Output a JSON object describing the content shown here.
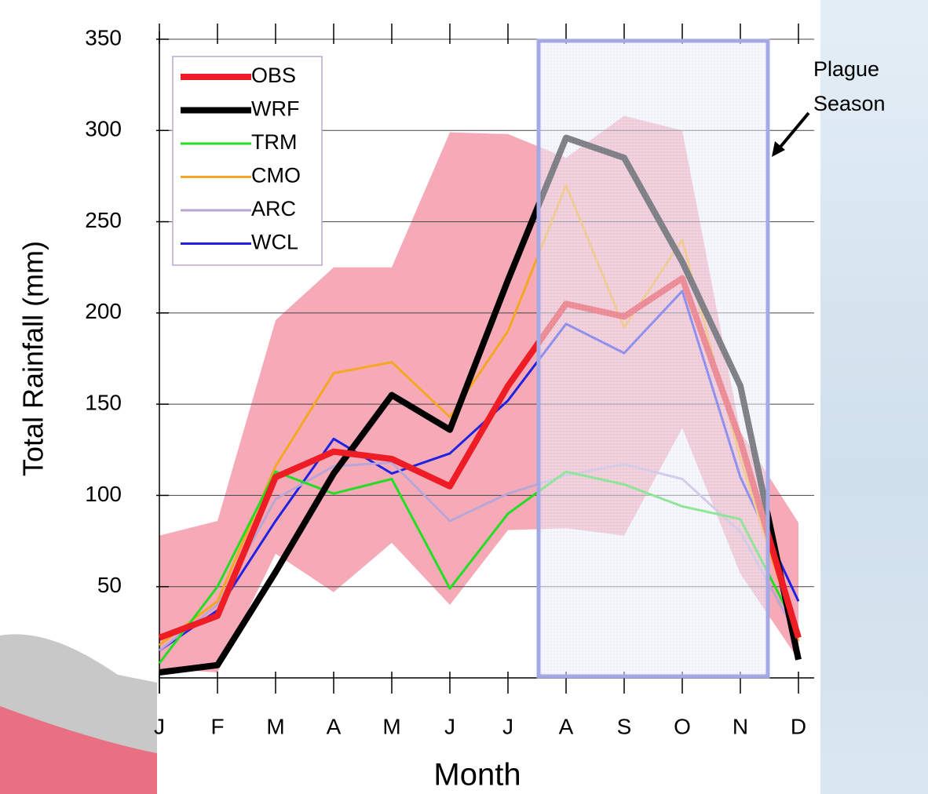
{
  "chart_data": {
    "type": "line",
    "ylabel": "Total Rainfall (mm)",
    "xlabel": "Month",
    "annotation": [
      "Plague",
      "Season"
    ],
    "categories": [
      "J",
      "F",
      "M",
      "A",
      "M",
      "J",
      "J",
      "A",
      "S",
      "O",
      "N",
      "D"
    ],
    "ylim": [
      0,
      350
    ],
    "yticks": [
      50,
      100,
      150,
      200,
      250,
      300,
      350
    ],
    "grid": true,
    "band": {
      "color": "#f6aab8",
      "upper": [
        78,
        86,
        196,
        225,
        225,
        299,
        298,
        285,
        308,
        300,
        135,
        85
      ],
      "lower": [
        5,
        3,
        68,
        47,
        74,
        40,
        81,
        82,
        78,
        137,
        57,
        10
      ]
    },
    "series": [
      {
        "name": "OBS",
        "color": "#ee1c24",
        "width": 8,
        "values": [
          22,
          34,
          110,
          124,
          120,
          105,
          160,
          205,
          198,
          219,
          130,
          22
        ]
      },
      {
        "name": "WRF",
        "color": "#000000",
        "width": 8,
        "values": [
          3,
          7,
          58,
          112,
          155,
          136,
          218,
          296,
          285,
          228,
          160,
          10
        ]
      },
      {
        "name": "TRM",
        "color": "#22dd22",
        "width": 3,
        "values": [
          8,
          50,
          113,
          101,
          109,
          49,
          90,
          113,
          106,
          94,
          87,
          25
        ]
      },
      {
        "name": "CMO",
        "color": "#f5a623",
        "width": 3,
        "values": [
          18,
          42,
          116,
          167,
          173,
          143,
          190,
          270,
          192,
          240,
          120,
          20
        ]
      },
      {
        "name": "ARC",
        "color": "#b9a6d6",
        "width": 3,
        "values": [
          15,
          40,
          98,
          116,
          118,
          86,
          101,
          111,
          117,
          109,
          80,
          22
        ]
      },
      {
        "name": "WCL",
        "color": "#1f22e0",
        "width": 3,
        "values": [
          15,
          37,
          86,
          131,
          112,
          123,
          152,
          194,
          178,
          212,
          110,
          42
        ]
      }
    ]
  }
}
